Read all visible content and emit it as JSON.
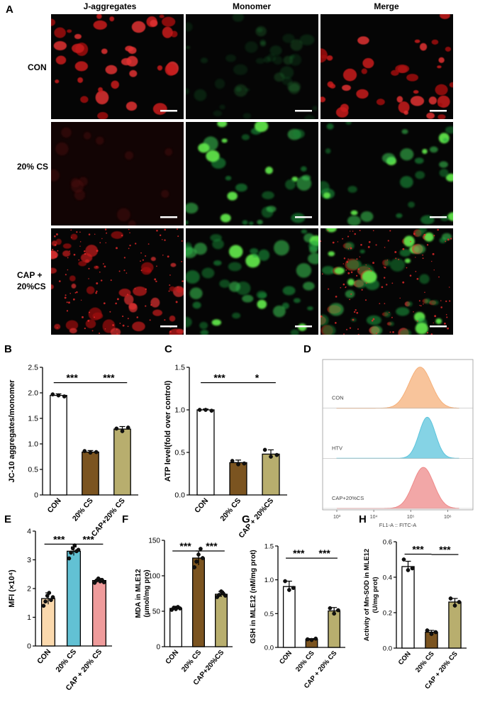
{
  "panelA": {
    "letter": "A",
    "columns": [
      "J-aggregates",
      "Monomer",
      "Merge"
    ],
    "rows": [
      "CON",
      "20% CS",
      "CAP +\n20%CS"
    ]
  },
  "panels": {
    "B": {
      "letter": "B",
      "ylabel": "JC-10 aggregates/monomer"
    },
    "C": {
      "letter": "C",
      "ylabel": "ATP level(fold over control)"
    },
    "D": {
      "letter": "D",
      "xlabel": "FL1-A :: FITC-A",
      "tracks": [
        "CON",
        "HTV",
        "CAP+20%CS"
      ]
    },
    "E": {
      "letter": "E",
      "ylabel": "MFI (×10⁴)"
    },
    "F": {
      "letter": "F",
      "ylabel": "MDA in MLE12 (μmol/mg pro)"
    },
    "G": {
      "letter": "G",
      "ylabel": "GSH in MLE12 (nM/mg prot)"
    },
    "H": {
      "letter": "H",
      "ylabel": "Activity of Mn-SOD in MLE12 (U/mg prot)"
    }
  },
  "chart_data": [
    {
      "id": "B",
      "type": "bar",
      "categories": [
        "CON",
        "20% CS",
        "CAP+20% CS"
      ],
      "values": [
        1.95,
        0.84,
        1.29
      ],
      "errors": [
        0.03,
        0.03,
        0.05
      ],
      "points": [
        [
          1.97,
          1.95,
          1.93
        ],
        [
          0.86,
          0.83,
          0.84
        ],
        [
          1.3,
          1.25,
          1.32
        ]
      ],
      "ylim": [
        0,
        2.5
      ],
      "yticks": [
        "0",
        "0.5",
        "1.0",
        "1.5",
        "2.0",
        "2.5"
      ],
      "colors": [
        "#ffffff",
        "#7b5420",
        "#b8ae6e"
      ],
      "sig": [
        {
          "from": 0,
          "to": 1,
          "label": "***"
        },
        {
          "from": 1,
          "to": 2,
          "label": "***"
        }
      ]
    },
    {
      "id": "C",
      "type": "bar",
      "categories": [
        "CON",
        "20% CS",
        "CAP + 20%CS"
      ],
      "values": [
        1.0,
        0.38,
        0.48
      ],
      "errors": [
        0.01,
        0.03,
        0.05
      ],
      "points": [
        [
          1.0,
          1.0,
          0.99
        ],
        [
          0.4,
          0.36,
          0.37
        ],
        [
          0.53,
          0.45,
          0.47
        ]
      ],
      "ylim": [
        0,
        1.5
      ],
      "yticks": [
        "0.0",
        "0.5",
        "1.0",
        "1.5"
      ],
      "colors": [
        "#ffffff",
        "#7b5420",
        "#b8ae6e"
      ],
      "sig": [
        {
          "from": 0,
          "to": 1,
          "label": "***"
        },
        {
          "from": 1,
          "to": 2,
          "label": "*"
        }
      ]
    },
    {
      "id": "E",
      "type": "bar",
      "categories": [
        "CON",
        "20% CS",
        "CAP + 20% CS"
      ],
      "values": [
        1.65,
        3.3,
        2.28
      ],
      "errors": [
        0.2,
        0.15,
        0.07
      ],
      "points": [
        [
          1.4,
          1.55,
          1.75,
          1.85,
          1.6,
          1.7
        ],
        [
          3.05,
          3.25,
          3.4,
          3.5,
          3.3,
          3.35
        ],
        [
          2.2,
          2.28,
          2.35,
          2.25,
          2.3,
          2.22
        ]
      ],
      "ylim": [
        0,
        4
      ],
      "yticks": [
        "0",
        "1",
        "2",
        "3",
        "4"
      ],
      "colors": [
        "#fbd9ad",
        "#62c1d4",
        "#ef9b9b"
      ],
      "sig": [
        {
          "from": 0,
          "to": 1,
          "label": "***"
        },
        {
          "from": 1,
          "to": 2,
          "label": "***"
        }
      ]
    },
    {
      "id": "F",
      "type": "bar",
      "categories": [
        "CON",
        "20% CS",
        "CAP+20%CS"
      ],
      "values": [
        54,
        125,
        74
      ],
      "errors": [
        3,
        10,
        4
      ],
      "points": [
        [
          52,
          55,
          53,
          56,
          54
        ],
        [
          112,
          120,
          130,
          138,
          125
        ],
        [
          70,
          73,
          78,
          75,
          72
        ]
      ],
      "ylim": [
        0,
        150
      ],
      "yticks": [
        "0",
        "50",
        "100",
        "150"
      ],
      "colors": [
        "#ffffff",
        "#7b5420",
        "#b8ae6e"
      ],
      "sig": [
        {
          "from": 0,
          "to": 1,
          "label": "***"
        },
        {
          "from": 1,
          "to": 2,
          "label": "***"
        }
      ]
    },
    {
      "id": "G",
      "type": "bar",
      "categories": [
        "CON",
        "20% CS",
        "CAP + 20% CS"
      ],
      "values": [
        0.9,
        0.12,
        0.54
      ],
      "errors": [
        0.08,
        0.01,
        0.05
      ],
      "points": [
        [
          0.98,
          0.85,
          0.88
        ],
        [
          0.12,
          0.11,
          0.13
        ],
        [
          0.58,
          0.5,
          0.55
        ]
      ],
      "ylim": [
        0,
        1.5
      ],
      "yticks": [
        "0.0",
        "0.5",
        "1.0",
        "1.5"
      ],
      "colors": [
        "#ffffff",
        "#7b5420",
        "#b8ae6e"
      ],
      "sig": [
        {
          "from": 0,
          "to": 1,
          "label": "***"
        },
        {
          "from": 1,
          "to": 2,
          "label": "***"
        }
      ]
    },
    {
      "id": "H",
      "type": "bar",
      "categories": [
        "CON",
        "20% CS",
        "CAP + 20% CS"
      ],
      "values": [
        0.46,
        0.09,
        0.26
      ],
      "errors": [
        0.03,
        0.01,
        0.02
      ],
      "points": [
        [
          0.5,
          0.44,
          0.45
        ],
        [
          0.1,
          0.08,
          0.09
        ],
        [
          0.28,
          0.24,
          0.26
        ]
      ],
      "ylim": [
        0,
        0.6
      ],
      "yticks": [
        "0.0",
        "0.2",
        "0.4",
        "0.6"
      ],
      "colors": [
        "#ffffff",
        "#7b5420",
        "#b8ae6e"
      ],
      "sig": [
        {
          "from": 0,
          "to": 1,
          "label": "***"
        },
        {
          "from": 1,
          "to": 2,
          "label": "***"
        }
      ]
    }
  ],
  "histogram": {
    "id": "D",
    "xticks": [
      "10³",
      "10⁴",
      "10⁵",
      "10⁶"
    ],
    "tracks": [
      {
        "name": "CON",
        "color": "#f5b07a",
        "peak": 180000.0,
        "width": 0.3
      },
      {
        "name": "HTV",
        "color": "#5cc4dc",
        "peak": 280000.0,
        "width": 0.22
      },
      {
        "name": "CAP+20%CS",
        "color": "#ee8a8a",
        "peak": 220000.0,
        "width": 0.28
      }
    ]
  }
}
